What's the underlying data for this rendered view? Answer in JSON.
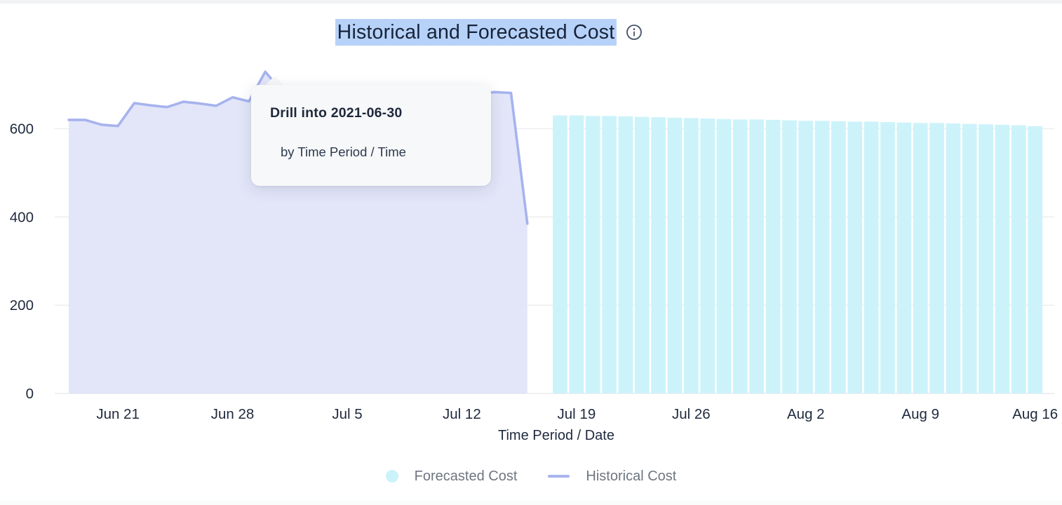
{
  "page": {
    "title": "Historical and Forecasted Cost",
    "title_selected": true
  },
  "tooltip": {
    "title": "Drill into 2021-06-30",
    "subtitle": "by Time Period / Time"
  },
  "legend": {
    "items": [
      {
        "label": "Forecasted Cost",
        "swatch": "circle",
        "color": "#cbf3fa"
      },
      {
        "label": "Historical Cost",
        "swatch": "line",
        "color": "#a8b4ee"
      }
    ]
  },
  "chart_data": {
    "type": "composite",
    "title": "Historical and Forecasted Cost",
    "xlabel": "Time Period / Date",
    "ylabel": "",
    "ylim": [
      0,
      750
    ],
    "y_ticks": [
      0,
      200,
      400,
      600
    ],
    "grid": "horizontal",
    "legend_position": "bottom",
    "x_ticks": [
      {
        "label": "Jun 21",
        "date": "2021-06-21"
      },
      {
        "label": "Jun 28",
        "date": "2021-06-28"
      },
      {
        "label": "Jul 5",
        "date": "2021-07-05"
      },
      {
        "label": "Jul 12",
        "date": "2021-07-12"
      },
      {
        "label": "Jul 19",
        "date": "2021-07-19"
      },
      {
        "label": "Jul 26",
        "date": "2021-07-26"
      },
      {
        "label": "Aug 2",
        "date": "2021-08-02"
      },
      {
        "label": "Aug 9",
        "date": "2021-08-09"
      },
      {
        "label": "Aug 16",
        "date": "2021-08-16"
      }
    ],
    "series": [
      {
        "name": "Historical Cost",
        "type": "area-line",
        "line_color": "#a6b3ee",
        "fill_color": "#e1e4f8",
        "dates": [
          "2021-06-18",
          "2021-06-19",
          "2021-06-20",
          "2021-06-21",
          "2021-06-22",
          "2021-06-23",
          "2021-06-24",
          "2021-06-25",
          "2021-06-26",
          "2021-06-27",
          "2021-06-28",
          "2021-06-29",
          "2021-06-30",
          "2021-07-01",
          "2021-07-02",
          "2021-07-03",
          "2021-07-04",
          "2021-07-05",
          "2021-07-06",
          "2021-07-07",
          "2021-07-08",
          "2021-07-09",
          "2021-07-10",
          "2021-07-11",
          "2021-07-12",
          "2021-07-13",
          "2021-07-14",
          "2021-07-15",
          "2021-07-16"
        ],
        "values": [
          620,
          620,
          609,
          606,
          658,
          653,
          649,
          661,
          657,
          652,
          671,
          662,
          729,
          685,
          678,
          674,
          676,
          672,
          675,
          678,
          674,
          676,
          673,
          675,
          677,
          679,
          683,
          681,
          385
        ]
      },
      {
        "name": "Forecasted Cost",
        "type": "bar",
        "color": "#cdf3fa",
        "dates": [
          "2021-07-18",
          "2021-07-19",
          "2021-07-20",
          "2021-07-21",
          "2021-07-22",
          "2021-07-23",
          "2021-07-24",
          "2021-07-25",
          "2021-07-26",
          "2021-07-27",
          "2021-07-28",
          "2021-07-29",
          "2021-07-30",
          "2021-07-31",
          "2021-08-01",
          "2021-08-02",
          "2021-08-03",
          "2021-08-04",
          "2021-08-05",
          "2021-08-06",
          "2021-08-07",
          "2021-08-08",
          "2021-08-09",
          "2021-08-10",
          "2021-08-11",
          "2021-08-12",
          "2021-08-13",
          "2021-08-14",
          "2021-08-15",
          "2021-08-16"
        ],
        "values": [
          630,
          630,
          629,
          629,
          628,
          627,
          626,
          625,
          624,
          623,
          622,
          621,
          621,
          620,
          619,
          618,
          618,
          617,
          616,
          616,
          615,
          614,
          613,
          613,
          612,
          611,
          610,
          609,
          608,
          606
        ]
      }
    ]
  }
}
